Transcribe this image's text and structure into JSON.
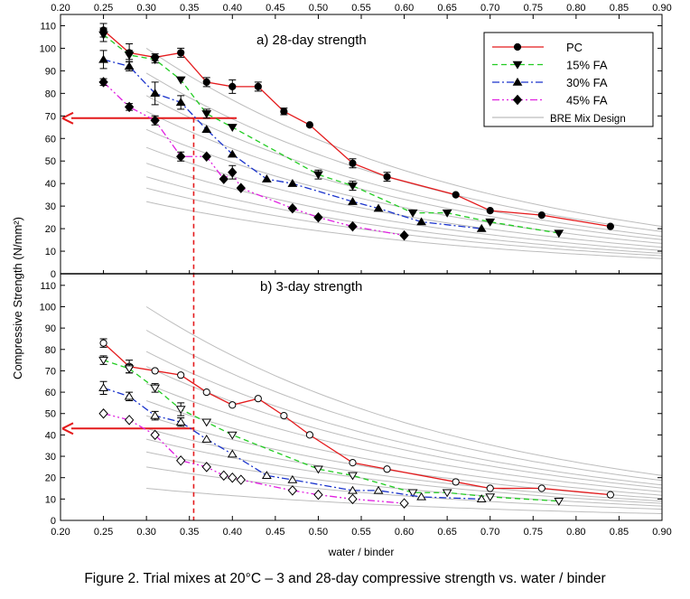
{
  "caption": "Figure 2. Trial mixes at 20°C – 3 and 28-day compressive strength vs. water / binder",
  "colors": {
    "PC": "#e41a1c",
    "FA15": "#22cc22",
    "FA30": "#1a33cc",
    "FA45": "#e020e0",
    "bre": "#bdbdbd",
    "arrow": "#e41a1c",
    "ref": "#e41a1c"
  },
  "chart_data": {
    "type": "line",
    "xlabel": "water / binder",
    "ylabel": "Compressive Strength (N/mm²)",
    "xlim": [
      0.2,
      0.9
    ],
    "ylim": [
      0,
      115
    ],
    "x_ticks": [
      "0.20",
      "0.25",
      "0.30",
      "0.35",
      "0.40",
      "0.45",
      "0.50",
      "0.55",
      "0.60",
      "0.65",
      "0.70",
      "0.75",
      "0.80",
      "0.85",
      "0.90"
    ],
    "y_ticks": [
      "0",
      "10",
      "20",
      "30",
      "40",
      "50",
      "60",
      "70",
      "80",
      "90",
      "100",
      "110"
    ],
    "reference": {
      "x": 0.355,
      "y28": 69,
      "y3": 43
    },
    "legend": {
      "position": "top-right",
      "entries": [
        {
          "key": "PC",
          "label": "PC",
          "style": "solid",
          "marker": "circle"
        },
        {
          "key": "FA15",
          "label": "15% FA",
          "style": "dash",
          "marker": "tri-down"
        },
        {
          "key": "FA30",
          "label": "30% FA",
          "style": "dashdot",
          "marker": "tri-up"
        },
        {
          "key": "FA45",
          "label": "45% FA",
          "style": "dashdotdot",
          "marker": "diamond"
        },
        {
          "key": "BRE",
          "label": "BRE Mix Design",
          "style": "grey",
          "marker": "none"
        }
      ]
    },
    "bre_curves": {
      "x_start": 0.3,
      "x_end": 0.9,
      "k": 2.6,
      "y28_at_start": [
        100,
        89,
        79,
        72,
        64,
        56,
        49,
        43,
        38,
        32
      ],
      "y3_at_start": [
        100,
        89,
        79,
        72,
        64,
        56,
        49,
        43,
        38,
        32,
        25,
        15
      ]
    },
    "panels": [
      {
        "key": "p28",
        "title": "a) 28-day strength",
        "filled": true,
        "series": [
          {
            "key": "PC",
            "name": "PC",
            "x": [
              0.25,
              0.28,
              0.31,
              0.34,
              0.37,
              0.4,
              0.43,
              0.46,
              0.49,
              0.54,
              0.58,
              0.66,
              0.7,
              0.76,
              0.84
            ],
            "y": [
              108,
              98,
              96,
              98,
              85,
              83,
              83,
              72,
              66,
              49,
              43,
              35,
              28,
              26,
              21
            ],
            "err": [
              3,
              4,
              1.5,
              2,
              2,
              3,
              2,
              1.5,
              1,
              2,
              2,
              1,
              1,
              1,
              1
            ]
          },
          {
            "key": "FA15",
            "name": "15% FA",
            "x": [
              0.25,
              0.28,
              0.31,
              0.34,
              0.37,
              0.4,
              0.5,
              0.54,
              0.61,
              0.65,
              0.7,
              0.78
            ],
            "y": [
              106,
              97,
              95,
              86,
              71,
              65,
              44,
              39,
              27,
              27,
              23,
              18
            ],
            "err": [
              3,
              2,
              1.5,
              1,
              2,
              1,
              2,
              2,
              1,
              1,
              1,
              1
            ]
          },
          {
            "key": "FA30",
            "name": "30% FA",
            "x": [
              0.25,
              0.28,
              0.31,
              0.34,
              0.37,
              0.4,
              0.44,
              0.47,
              0.54,
              0.57,
              0.62,
              0.69
            ],
            "y": [
              95,
              92,
              80,
              76,
              64,
              53,
              42,
              40,
              32,
              29,
              23,
              20
            ],
            "err": [
              4,
              2,
              5,
              3,
              1,
              1,
              1,
              1,
              1,
              1,
              1,
              1
            ]
          },
          {
            "key": "FA45",
            "name": "45% FA",
            "x": [
              0.25,
              0.28,
              0.31,
              0.34,
              0.37,
              0.39,
              0.4,
              0.41,
              0.47,
              0.5,
              0.54,
              0.6
            ],
            "y": [
              85,
              74,
              68,
              52,
              52,
              42,
              45,
              38,
              29,
              25,
              21,
              17
            ],
            "err": [
              1.5,
              1.5,
              2,
              2,
              1,
              1,
              3,
              1,
              1,
              1,
              1,
              1
            ]
          }
        ]
      },
      {
        "key": "p3",
        "title": "b) 3-day strength",
        "filled": false,
        "series": [
          {
            "key": "PC",
            "name": "PC",
            "x": [
              0.25,
              0.28,
              0.31,
              0.34,
              0.37,
              0.4,
              0.43,
              0.46,
              0.49,
              0.54,
              0.58,
              0.66,
              0.7,
              0.76,
              0.84
            ],
            "y": [
              83,
              72,
              70,
              68,
              60,
              54,
              57,
              49,
              40,
              27,
              24,
              18,
              15,
              15,
              12
            ],
            "err": [
              2,
              3,
              1,
              1,
              1,
              1,
              1,
              1,
              1,
              1,
              1,
              1,
              1,
              1,
              1
            ]
          },
          {
            "key": "FA15",
            "name": "15% FA",
            "x": [
              0.25,
              0.28,
              0.31,
              0.34,
              0.37,
              0.4,
              0.5,
              0.54,
              0.61,
              0.65,
              0.7,
              0.78
            ],
            "y": [
              75,
              71,
              62,
              52,
              46,
              40,
              24,
              21,
              13,
              13,
              11,
              9
            ],
            "err": [
              2,
              2,
              2,
              3,
              1,
              1,
              1,
              1,
              1,
              1,
              1,
              1
            ]
          },
          {
            "key": "FA30",
            "name": "30% FA",
            "x": [
              0.25,
              0.28,
              0.31,
              0.34,
              0.37,
              0.4,
              0.44,
              0.47,
              0.54,
              0.57,
              0.62,
              0.69
            ],
            "y": [
              62,
              58,
              49,
              46,
              38,
              31,
              21,
              19,
              14,
              14,
              11,
              10
            ],
            "err": [
              3,
              2,
              2,
              2,
              1,
              1,
              1,
              1,
              1,
              1,
              1,
              1
            ]
          },
          {
            "key": "FA45",
            "name": "45% FA",
            "x": [
              0.25,
              0.28,
              0.31,
              0.34,
              0.37,
              0.39,
              0.4,
              0.41,
              0.47,
              0.5,
              0.54,
              0.6
            ],
            "y": [
              50,
              47,
              40,
              28,
              25,
              21,
              20,
              19,
              14,
              12,
              10,
              8
            ],
            "err": [
              1,
              1,
              1,
              1,
              1,
              1,
              1,
              1,
              1,
              1,
              1,
              1
            ]
          }
        ]
      }
    ]
  }
}
